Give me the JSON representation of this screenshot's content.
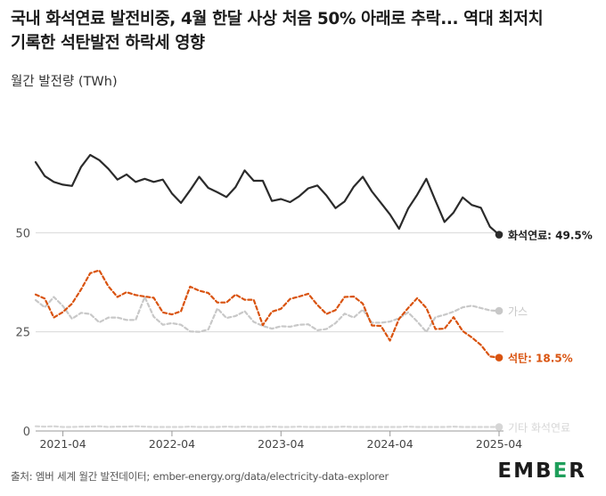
{
  "header": {
    "title_line1": "국내 화석연료 발전비중, 4월 한달 사상 처음 50% 아래로 추락... 역대 최저치",
    "title_line2": "기록한 석탄발전 하락세 영향",
    "unit_label": "월간 발전량 (TWh)"
  },
  "footer": {
    "source": "출처: 엠버 세계 월간 발전데이터; ember-energy.org/data/electricity-data-explorer",
    "logo_left": "EMB",
    "logo_e": "E",
    "logo_right": "R"
  },
  "chart_data": {
    "type": "line",
    "ylim": [
      0,
      75
    ],
    "yticks": [
      "0",
      "25",
      "50"
    ],
    "ytick_values": [
      0,
      25,
      50
    ],
    "x_start": "2021-01",
    "x_end": "2025-04",
    "xtick_labels": [
      "2021-04",
      "2022-04",
      "2023-04",
      "2024-04",
      "2025-04"
    ],
    "xtick_positions": [
      3,
      15,
      27,
      39,
      51
    ],
    "grid": true,
    "series": [
      {
        "name": "화석연료",
        "end_label": "화석연료: 49.5%",
        "color": "#2b2b2b",
        "style": "solid",
        "values": [
          67.8,
          64.3,
          62.8,
          62.1,
          61.8,
          66.6,
          69.6,
          68.3,
          66.1,
          63.4,
          64.7,
          62.8,
          63.6,
          62.8,
          63.4,
          59.9,
          57.5,
          60.7,
          64.1,
          61.3,
          60.2,
          59.0,
          61.5,
          65.7,
          63.1,
          63.1,
          58.0,
          58.5,
          57.7,
          59.2,
          61.2,
          61.9,
          59.4,
          56.2,
          57.9,
          61.6,
          64.1,
          60.4,
          57.5,
          54.6,
          51.0,
          56.1,
          59.6,
          63.6,
          58.1,
          52.7,
          55.1,
          58.9,
          57.0,
          56.3,
          51.5,
          49.5
        ]
      },
      {
        "name": "가스",
        "end_label": "가스",
        "color": "#c8c8c8",
        "style": "dashed",
        "values": [
          33.0,
          31.2,
          33.8,
          31.5,
          28.3,
          29.8,
          29.5,
          27.4,
          28.6,
          28.6,
          28.0,
          28.0,
          33.8,
          28.8,
          26.8,
          27.2,
          26.8,
          25.1,
          25.0,
          25.6,
          30.9,
          28.5,
          29.0,
          30.2,
          27.5,
          26.5,
          25.8,
          26.4,
          26.3,
          26.8,
          26.9,
          25.4,
          25.7,
          27.2,
          29.6,
          28.6,
          30.6,
          27.3,
          27.3,
          27.6,
          28.4,
          29.9,
          27.6,
          25.0,
          28.7,
          29.3,
          30.1,
          31.2,
          31.6,
          31.0,
          30.4,
          30.3
        ]
      },
      {
        "name": "석탄",
        "end_label": "석탄: 18.5%",
        "color": "#d9530f",
        "style": "dashed",
        "values": [
          34.4,
          33.4,
          28.6,
          30.0,
          32.1,
          35.7,
          39.8,
          40.5,
          36.5,
          33.8,
          35.0,
          34.3,
          33.9,
          33.6,
          29.9,
          29.4,
          30.2,
          36.4,
          35.4,
          34.8,
          32.4,
          32.4,
          34.4,
          33.1,
          33.1,
          26.7,
          30.1,
          30.8,
          33.3,
          33.9,
          34.6,
          31.8,
          29.5,
          30.5,
          33.8,
          33.9,
          32.1,
          26.6,
          26.5,
          22.8,
          28.3,
          31.0,
          33.5,
          31.0,
          25.7,
          25.8,
          28.7,
          25.2,
          23.6,
          21.7,
          18.8,
          18.5
        ]
      },
      {
        "name": "기타 화석연료",
        "end_label": "기타 화석연료",
        "color": "#d6d6d6",
        "style": "dashed",
        "values": [
          1.2,
          1.1,
          1.2,
          1.0,
          1.0,
          1.1,
          1.1,
          1.2,
          1.0,
          1.1,
          1.1,
          1.2,
          1.1,
          1.0,
          1.0,
          1.0,
          1.0,
          1.1,
          1.0,
          1.0,
          1.0,
          1.1,
          1.0,
          1.1,
          1.0,
          1.0,
          1.1,
          1.0,
          1.0,
          1.1,
          1.0,
          1.0,
          1.0,
          1.0,
          1.1,
          1.0,
          1.0,
          1.0,
          1.0,
          1.0,
          1.0,
          1.1,
          1.0,
          1.0,
          1.0,
          1.0,
          1.1,
          1.0,
          1.0,
          1.0,
          1.0,
          1.0
        ]
      }
    ]
  }
}
